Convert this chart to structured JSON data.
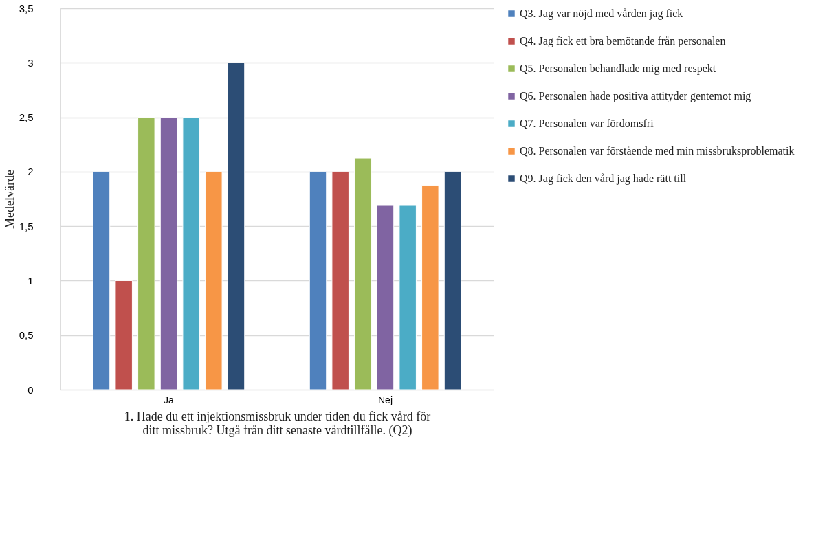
{
  "chart_data": {
    "type": "bar",
    "xlabel": "1. Hade du ett injektionsmissbruk under tiden du fick vård för ditt missbruk? Utgå från ditt senaste vårdtillfälle. (Q2)",
    "ylabel": "Medelvärde",
    "categories": [
      "Ja",
      "Nej"
    ],
    "series": [
      {
        "name": "Q3. Jag var nöjd med vården jag fick",
        "color": "#4f81bd",
        "values": [
          2,
          2
        ]
      },
      {
        "name": "Q4. Jag fick ett bra bemötande från personalen",
        "color": "#c0504d",
        "values": [
          1,
          2
        ]
      },
      {
        "name": "Q5. Personalen behandlade mig med respekt",
        "color": "#9bbb59",
        "values": [
          2.5,
          2.125
        ]
      },
      {
        "name": "Q6. Personalen hade positiva attityder gentemot mig",
        "color": "#8064a2",
        "values": [
          2.5,
          1.69
        ]
      },
      {
        "name": "Q7. Personalen var fördomsfri",
        "color": "#4bacc6",
        "values": [
          2.5,
          1.69
        ]
      },
      {
        "name": "Q8. Personalen var förstående med min missbruksproblematik",
        "color": "#f79646",
        "values": [
          2,
          1.875
        ]
      },
      {
        "name": "Q9. Jag fick den vård jag hade rätt till",
        "color": "#2c4d75",
        "values": [
          3,
          2
        ]
      }
    ],
    "ylim": [
      0,
      3.5
    ],
    "yticks": [
      {
        "value": 0,
        "label": "0"
      },
      {
        "value": 0.5,
        "label": "0,5"
      },
      {
        "value": 1,
        "label": "1"
      },
      {
        "value": 1.5,
        "label": "1,5"
      },
      {
        "value": 2,
        "label": "2"
      },
      {
        "value": 2.5,
        "label": "2,5"
      },
      {
        "value": 3,
        "label": "3"
      },
      {
        "value": 3.5,
        "label": "3,5"
      }
    ],
    "grid": "y",
    "legend": "right"
  }
}
